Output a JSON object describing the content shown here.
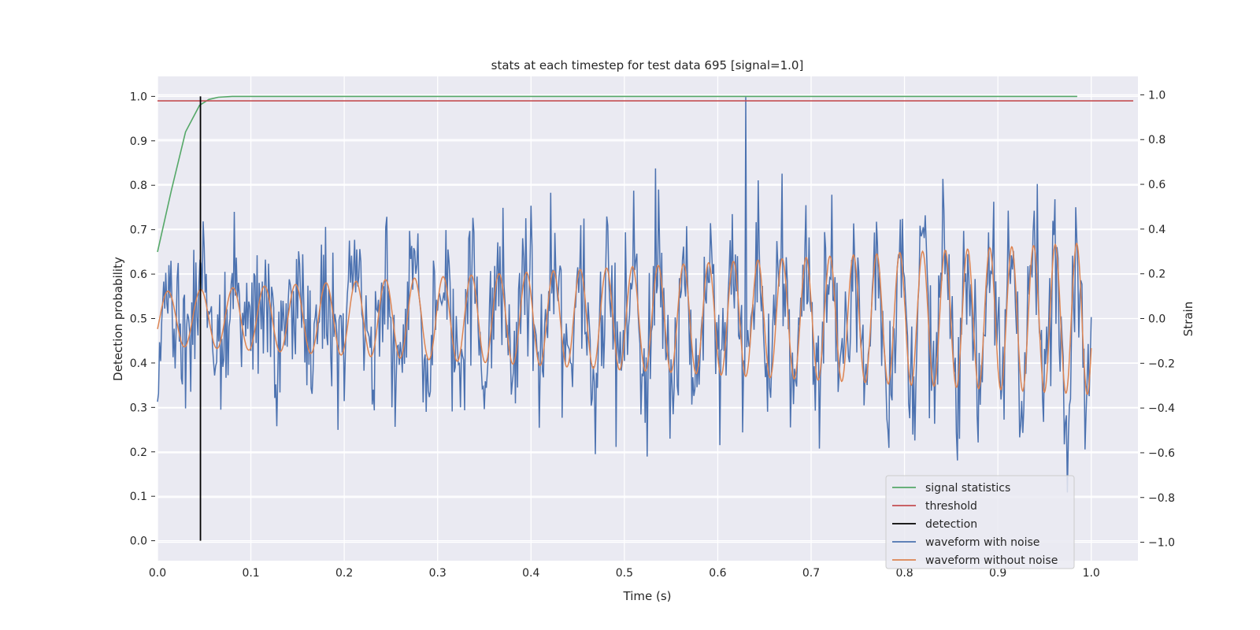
{
  "chart_data": {
    "type": "line",
    "title": "stats at each timestep for test data 695 [signal=1.0]",
    "xlabel": "Time (s)",
    "ylabel_left": "Detection probability",
    "ylabel_right": "Strain",
    "xlim": [
      0.0,
      1.05
    ],
    "ylim_left": [
      -0.045,
      1.045
    ],
    "ylim_right": [
      -1.0,
      1.0
    ],
    "xticks": [
      "0.0",
      "0.1",
      "0.2",
      "0.3",
      "0.4",
      "0.5",
      "0.6",
      "0.7",
      "0.8",
      "0.9",
      "1.0"
    ],
    "yticks_left": [
      "0.0",
      "0.1",
      "0.2",
      "0.3",
      "0.4",
      "0.5",
      "0.6",
      "0.7",
      "0.8",
      "0.9",
      "1.0"
    ],
    "yticks_right": [
      "−1.0",
      "−0.8",
      "−0.6",
      "−0.4",
      "−0.2",
      "0.0",
      "0.2",
      "0.4",
      "0.6",
      "0.8",
      "1.0"
    ],
    "grid": true,
    "background": "#eaeaf2",
    "legend_position": "lower-right",
    "series": [
      {
        "name": "signal statistics",
        "axis": "left",
        "color": "#55a868",
        "x": [
          0.0,
          0.015,
          0.03,
          0.045,
          0.055,
          0.065,
          0.08,
          0.2,
          0.4,
          0.6,
          0.8,
          0.985
        ],
        "y": [
          0.65,
          0.79,
          0.92,
          0.98,
          0.993,
          0.998,
          1.0,
          1.0,
          1.0,
          1.0,
          1.0,
          1.0
        ]
      },
      {
        "name": "threshold",
        "axis": "left",
        "color": "#c44e52",
        "x": [
          0.0,
          1.045
        ],
        "y": [
          0.99,
          0.99
        ]
      },
      {
        "name": "detection",
        "axis": "left",
        "color": "#000000",
        "x": [
          0.046,
          0.046
        ],
        "y": [
          0.0,
          1.0
        ]
      },
      {
        "name": "waveform with noise",
        "axis": "right",
        "color": "#4c72b0",
        "x_range": [
          0.0,
          1.0
        ],
        "count": 900,
        "amplitude_note": "noisy signal, peak 1.0 near 0.63 s"
      },
      {
        "name": "waveform without noise",
        "axis": "right",
        "color": "#dd8452",
        "x_range": [
          0.0,
          1.0
        ],
        "cycles": 36,
        "amplitude_start": 0.12,
        "amplitude_end": 0.34
      }
    ],
    "legend": [
      {
        "label": "signal statistics",
        "color": "#55a868"
      },
      {
        "label": "threshold",
        "color": "#c44e52"
      },
      {
        "label": "detection",
        "color": "#000000"
      },
      {
        "label": "waveform with noise",
        "color": "#4c72b0"
      },
      {
        "label": "waveform without noise",
        "color": "#dd8452"
      }
    ]
  }
}
